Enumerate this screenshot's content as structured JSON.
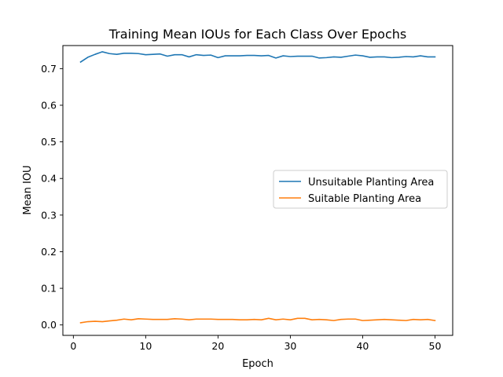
{
  "chart_data": {
    "type": "line",
    "title": "Training Mean IOUs for Each Class Over Epochs",
    "xlabel": "Epoch",
    "ylabel": "Mean IOU",
    "xlim": [
      -1.45,
      52.45
    ],
    "ylim": [
      -0.0285,
      0.763
    ],
    "x_ticks": [
      0,
      10,
      20,
      30,
      40,
      50
    ],
    "y_ticks": [
      0.0,
      0.1,
      0.2,
      0.3,
      0.4,
      0.5,
      0.6,
      0.7
    ],
    "y_tick_labels": [
      "0.0",
      "0.1",
      "0.2",
      "0.3",
      "0.4",
      "0.5",
      "0.6",
      "0.7"
    ],
    "grid": false,
    "legend_position": "center-right",
    "x": [
      1,
      2,
      3,
      4,
      5,
      6,
      7,
      8,
      9,
      10,
      11,
      12,
      13,
      14,
      15,
      16,
      17,
      18,
      19,
      20,
      21,
      22,
      23,
      24,
      25,
      26,
      27,
      28,
      29,
      30,
      31,
      32,
      33,
      34,
      35,
      36,
      37,
      38,
      39,
      40,
      41,
      42,
      43,
      44,
      45,
      46,
      47,
      48,
      49,
      50
    ],
    "series": [
      {
        "name": "Unsuitable Planting Area",
        "color": "#1f77b4",
        "values": [
          0.718,
          0.731,
          0.739,
          0.746,
          0.741,
          0.739,
          0.742,
          0.742,
          0.741,
          0.738,
          0.739,
          0.74,
          0.734,
          0.738,
          0.738,
          0.732,
          0.738,
          0.736,
          0.737,
          0.73,
          0.735,
          0.735,
          0.735,
          0.736,
          0.736,
          0.735,
          0.736,
          0.729,
          0.735,
          0.733,
          0.734,
          0.734,
          0.734,
          0.729,
          0.73,
          0.732,
          0.731,
          0.734,
          0.737,
          0.735,
          0.731,
          0.732,
          0.732,
          0.73,
          0.731,
          0.733,
          0.732,
          0.735,
          0.732,
          0.732
        ]
      },
      {
        "name": "Suitable Planting Area",
        "color": "#ff7f0e",
        "values": [
          0.006,
          0.009,
          0.01,
          0.009,
          0.011,
          0.013,
          0.016,
          0.014,
          0.017,
          0.016,
          0.015,
          0.015,
          0.015,
          0.017,
          0.016,
          0.014,
          0.016,
          0.016,
          0.016,
          0.015,
          0.015,
          0.015,
          0.014,
          0.014,
          0.015,
          0.014,
          0.018,
          0.014,
          0.016,
          0.014,
          0.018,
          0.018,
          0.014,
          0.015,
          0.014,
          0.012,
          0.015,
          0.016,
          0.016,
          0.012,
          0.013,
          0.014,
          0.015,
          0.014,
          0.013,
          0.012,
          0.015,
          0.014,
          0.015,
          0.012
        ]
      }
    ]
  }
}
